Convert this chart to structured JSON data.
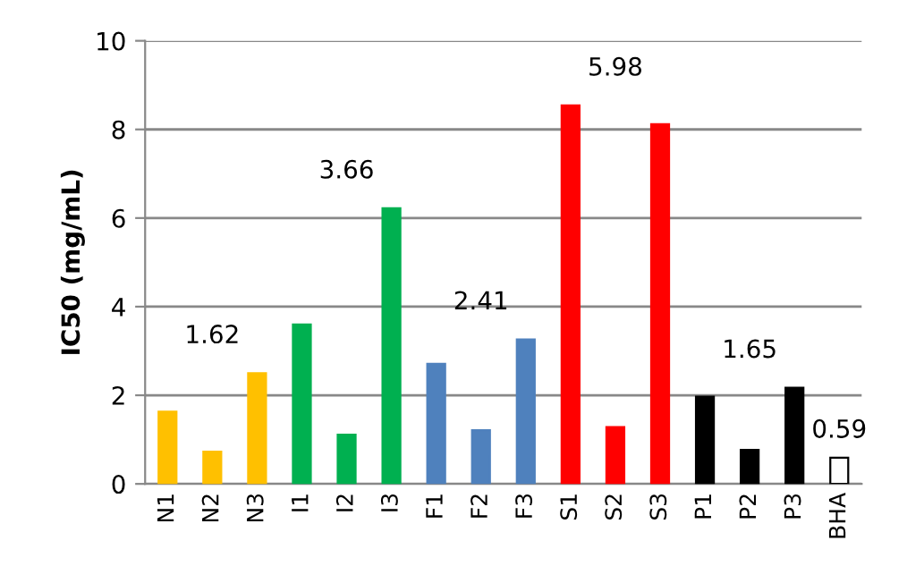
{
  "chart_data": {
    "type": "bar",
    "ylabel": "IC50 (mg/mL)",
    "categories": [
      "N1",
      "N2",
      "N3",
      "I1",
      "I2",
      "I3",
      "F1",
      "F2",
      "F3",
      "S1",
      "S2",
      "S3",
      "P1",
      "P2",
      "P3",
      "BHA"
    ],
    "values": [
      1.63,
      0.73,
      2.5,
      3.6,
      1.11,
      6.22,
      2.71,
      1.21,
      3.26,
      8.54,
      1.28,
      8.12,
      1.97,
      0.77,
      2.17,
      0.59
    ],
    "colors": [
      "#ffc000",
      "#ffc000",
      "#ffc000",
      "#00b050",
      "#00b050",
      "#00b050",
      "#4f81bd",
      "#4f81bd",
      "#4f81bd",
      "#ff0000",
      "#ff0000",
      "#ff0000",
      "#000000",
      "#000000",
      "#000000",
      "#ffffff"
    ],
    "value_labels": [
      null,
      null,
      null,
      null,
      null,
      null,
      null,
      null,
      null,
      null,
      null,
      null,
      null,
      null,
      null,
      "0.59"
    ],
    "annotations": [
      "1.62",
      "3.66",
      "2.41",
      "5.98",
      "1.65"
    ],
    "ylim": [
      0,
      10
    ],
    "yticks": [
      0,
      2,
      4,
      6,
      8,
      10
    ],
    "grid": "y",
    "legend": false
  }
}
